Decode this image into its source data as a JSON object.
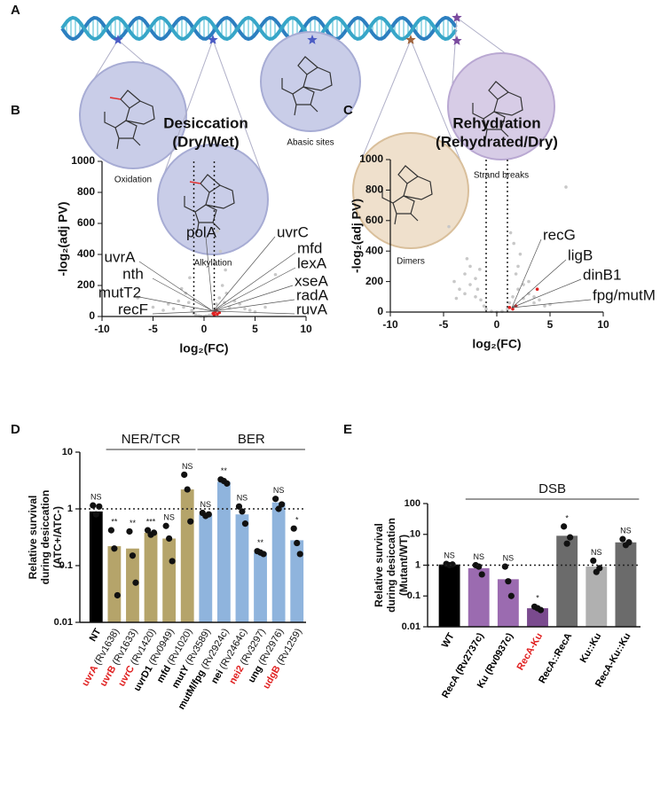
{
  "diagram": {
    "panel": "A",
    "lesions": [
      "Oxidation",
      "Alkylation",
      "Abasic sites",
      "Dimers",
      "Strand breaks"
    ]
  },
  "chart_data": [
    {
      "type": "scatter",
      "panel": "B",
      "title": "Desiccation",
      "subtitle": "(Dry/Wet)",
      "x_label": "log₂(FC)",
      "y_label": "-log₂(adj PV)",
      "xlim": [
        -10,
        10
      ],
      "xticks": [
        -10,
        -5,
        0,
        5,
        10
      ],
      "ylim": [
        0,
        1000
      ],
      "yticks": [
        0,
        200,
        400,
        600,
        800,
        1000
      ],
      "vlines": [
        -1,
        1
      ],
      "point_color": "#c8c8c8",
      "highlight_color": "#e02020",
      "points": {
        "x": [
          -6.5,
          -5,
          -4,
          -3.5,
          -3,
          -2.5,
          -2,
          -1.8,
          -1.5,
          -1.2,
          -1,
          -0.8,
          -0.5,
          -0.3,
          0,
          0.2,
          0.5,
          0.8,
          1,
          1.2,
          1.5,
          1.8,
          2,
          2.2,
          2.5,
          3,
          3.5,
          4,
          4.5,
          5,
          6,
          7,
          1.3,
          1.6,
          2.1,
          -2.2,
          -1.4
        ],
        "y": [
          120,
          60,
          40,
          80,
          50,
          100,
          60,
          150,
          90,
          40,
          20,
          10,
          5,
          2,
          0,
          3,
          8,
          15,
          30,
          80,
          120,
          200,
          90,
          150,
          60,
          100,
          80,
          50,
          40,
          30,
          60,
          270,
          550,
          420,
          300,
          180,
          250
        ]
      },
      "highlight": {
        "x": [
          0.9,
          1.1,
          1.3,
          1.5,
          1.0,
          1.2
        ],
        "y": [
          20,
          30,
          15,
          25,
          10,
          40
        ]
      },
      "annotations": [
        {
          "text": "polA",
          "color": "#111111"
        },
        {
          "text": "uvrC",
          "color": "#b5a46a"
        },
        {
          "text": "mfd",
          "color": "#b5a46a"
        },
        {
          "text": "uvrA",
          "color": "#b5a46a"
        },
        {
          "text": "lexA",
          "color": "#9b59b6"
        },
        {
          "text": "nth",
          "color": "#8fb4dd"
        },
        {
          "text": "xseA",
          "color": "#111111"
        },
        {
          "text": "mutT2",
          "color": "#8fb4dd"
        },
        {
          "text": "radA",
          "color": "#111111"
        },
        {
          "text": "recF",
          "color": "#111111"
        },
        {
          "text": "ruvA",
          "color": "#111111"
        }
      ]
    },
    {
      "type": "scatter",
      "panel": "C",
      "title": "Rehydration",
      "subtitle": "(Rehydrated/Dry)",
      "x_label": "log₂(FC)",
      "y_label": "-log₂(adj PV)",
      "xlim": [
        -10,
        10
      ],
      "xticks": [
        -10,
        -5,
        0,
        5,
        10
      ],
      "ylim": [
        0,
        1000
      ],
      "yticks": [
        0,
        200,
        400,
        600,
        800,
        1000
      ],
      "vlines": [
        -1,
        1
      ],
      "point_color": "#c8c8c8",
      "highlight_color": "#e02020",
      "points": {
        "x": [
          -4.5,
          -4,
          -3.5,
          -3,
          -3,
          -2.5,
          -2.5,
          -2,
          -2,
          -1.8,
          -1.5,
          -1.2,
          -1,
          -0.5,
          0,
          0.5,
          1,
          1.2,
          1.5,
          1.8,
          2,
          2,
          2.5,
          2.5,
          3,
          3,
          3.5,
          3.5,
          4,
          4.5,
          5,
          6.5,
          -2.8,
          -3.8,
          1.6,
          2.2,
          -1.6,
          1.3
        ],
        "y": [
          560,
          200,
          150,
          250,
          120,
          300,
          180,
          220,
          100,
          150,
          80,
          40,
          20,
          5,
          0,
          5,
          20,
          60,
          100,
          250,
          150,
          300,
          180,
          90,
          200,
          120,
          100,
          60,
          80,
          40,
          50,
          820,
          350,
          90,
          450,
          380,
          280,
          520
        ]
      },
      "highlight": {
        "x": [
          1.2,
          1.5,
          1.8,
          3.8
        ],
        "y": [
          30,
          20,
          40,
          150
        ]
      },
      "annotations": [
        {
          "text": "recG",
          "color": "#111111"
        },
        {
          "text": "ligB",
          "color": "#111111"
        },
        {
          "text": "dinB1",
          "color": "#111111"
        },
        {
          "text": "fpg/mutM",
          "color": "#8fb4dd"
        }
      ]
    },
    {
      "type": "bar",
      "panel": "D",
      "y_label": [
        "Relative survival",
        "during desiccation",
        "(ATC+/ATC-)"
      ],
      "categories": [
        "NT",
        "uvrA",
        "uvrB",
        "uvrC",
        "uvrD1",
        "mfd",
        "mutY",
        "mutM/fpg",
        "nei",
        "nei2",
        "ung",
        "udgB"
      ],
      "category_loci": [
        null,
        "(Rv1638)",
        "(Rv1633)",
        "(Rv1420)",
        "(Rv0949)",
        "(Rv1020)",
        "(Rv3589)",
        "(Rv2924c)",
        "(Rv2464c)",
        "(Rv3297)",
        "(Rv2976)",
        "(Rv1259)"
      ],
      "label_colors": [
        "#000000",
        "#e02020",
        "#e02020",
        "#e02020",
        "#000000",
        "#000000",
        "#000000",
        "#000000",
        "#000000",
        "#e02020",
        "#000000",
        "#e02020"
      ],
      "values": [
        0.9,
        0.22,
        0.2,
        0.38,
        0.3,
        2.2,
        0.8,
        3.0,
        0.8,
        0.17,
        1.3,
        0.28
      ],
      "points": [
        [
          1.15,
          0.8,
          1.1
        ],
        [
          0.42,
          0.2,
          0.03
        ],
        [
          0.4,
          0.15,
          0.05
        ],
        [
          0.42,
          0.35,
          0.38
        ],
        [
          0.5,
          0.3,
          0.12
        ],
        [
          4,
          2.2,
          0.6
        ],
        [
          0.85,
          0.75,
          0.8
        ],
        [
          3.3,
          3.1,
          2.8
        ],
        [
          1.1,
          0.9,
          0.55
        ],
        [
          0.18,
          0.17,
          0.16
        ],
        [
          1.5,
          1.0,
          1.2
        ],
        [
          0.45,
          0.25,
          0.16
        ]
      ],
      "colors": [
        "#000000",
        "#b5a46a",
        "#b5a46a",
        "#b5a46a",
        "#b5a46a",
        "#b5a46a",
        "#8fb4dd",
        "#8fb4dd",
        "#8fb4dd",
        "#8fb4dd",
        "#8fb4dd",
        "#8fb4dd"
      ],
      "sig_labels": [
        "NS",
        "**",
        "**",
        "***",
        "NS",
        "NS",
        "NS",
        "**",
        "NS",
        "**",
        "NS",
        "*"
      ],
      "groups": [
        {
          "label": "NER/TCR",
          "from": 1,
          "to": 5
        },
        {
          "label": "BER",
          "from": 6,
          "to": 11
        }
      ],
      "log_scale": true,
      "ylim": [
        0.01,
        10
      ],
      "yticks": [
        0.01,
        0.1,
        1,
        10
      ],
      "hline": 1
    },
    {
      "type": "bar",
      "panel": "E",
      "y_label": [
        "Relative survival",
        "during desiccation",
        "(Mutant/WT)"
      ],
      "categories": [
        "WT",
        "RecA (Rv2737c)",
        "Ku (Rv0937c)",
        "RecA-Ku",
        "RecA::RecA",
        "Ku::Ku",
        "RecA-Ku::Ku"
      ],
      "category_loci": [
        null,
        null,
        null,
        null,
        null,
        null,
        null
      ],
      "label_colors": [
        "#000000",
        "#000000",
        "#000000",
        "#e02020",
        "#000000",
        "#000000",
        "#000000"
      ],
      "values": [
        1.05,
        0.8,
        0.35,
        0.04,
        9,
        0.9,
        5.5
      ],
      "points": [
        [
          1.1,
          1,
          1.05
        ],
        [
          1,
          0.9,
          0.5
        ],
        [
          0.9,
          0.3,
          0.1
        ],
        [
          0.045,
          0.04,
          0.035
        ],
        [
          18,
          5,
          8
        ],
        [
          1.4,
          0.6,
          0.8
        ],
        [
          7,
          4.5,
          5.5
        ]
      ],
      "colors": [
        "#000000",
        "#9b6bb0",
        "#9b6bb0",
        "#7a4a8e",
        "#6b6b6b",
        "#b0b0b0",
        "#6b6b6b"
      ],
      "sig_labels": [
        "NS",
        "NS",
        "NS",
        "*",
        "*",
        "NS",
        "NS"
      ],
      "groups": [
        {
          "label": "DSB",
          "from": 1,
          "to": 6
        }
      ],
      "log_scale": true,
      "ylim": [
        0.01,
        100
      ],
      "yticks": [
        0.01,
        0.1,
        1,
        10,
        100
      ],
      "hline": 1
    }
  ]
}
